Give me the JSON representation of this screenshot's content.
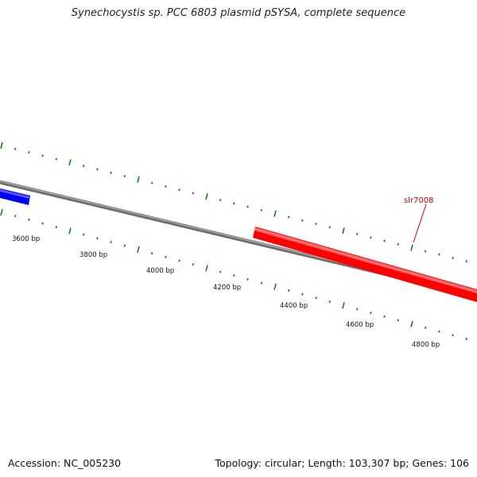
{
  "title": "Synechocystis sp. PCC 6803 plasmid pSYSA, complete sequence",
  "footer": {
    "accession": "Accession: NC_005230",
    "summary": "Topology: circular; Length: 103,307 bp; Genes: 106"
  },
  "colors": {
    "backbone": "#808080",
    "forward_gene": "#ff0000",
    "reverse_gene": "#0000ff",
    "tick": "#1a7a1a",
    "gene_label": "#cc0000"
  },
  "genes": [
    {
      "name": "",
      "strand": "reverse",
      "color": "#0000ff"
    },
    {
      "name": "slr7008",
      "strand": "forward",
      "color": "#ff0000"
    }
  ],
  "position_labels": [
    {
      "label": "3600 bp"
    },
    {
      "label": "3800 bp"
    },
    {
      "label": "4000 bp"
    },
    {
      "label": "4200 bp"
    },
    {
      "label": "4400 bp"
    },
    {
      "label": "4600 bp"
    },
    {
      "label": "4800 bp"
    }
  ]
}
